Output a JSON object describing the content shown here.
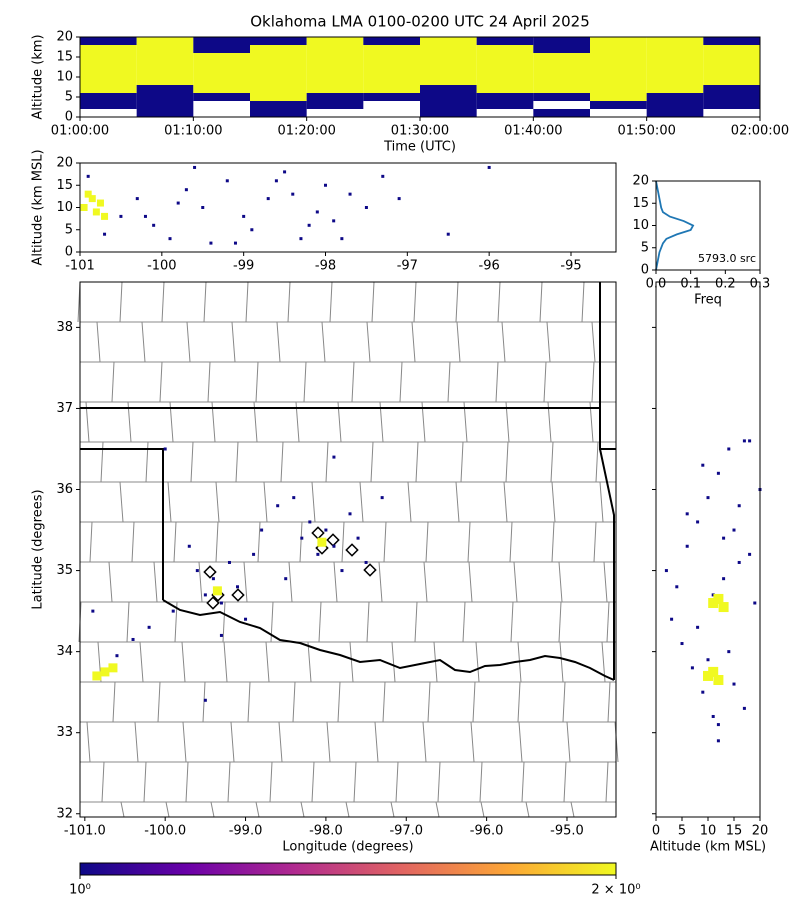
{
  "chart_data": [
    {
      "type": "heatmap",
      "title": "Oklahoma LMA 0100-0200 UTC 24 April 2025",
      "x_label": "Time (UTC)",
      "y_label": "Altitude (km)",
      "xlim": [
        "01:00:00",
        "02:00:00"
      ],
      "xticks": [
        "01:00:00",
        "01:10:00",
        "01:20:00",
        "01:30:00",
        "01:40:00",
        "01:50:00",
        "02:00:00"
      ],
      "ylim": [
        0,
        20
      ],
      "yticks": [
        0,
        5,
        10,
        15,
        20
      ],
      "xbins": [
        "01:00:00",
        "01:05:00",
        "01:10:00",
        "01:15:00",
        "01:20:00",
        "01:25:00",
        "01:30:00",
        "01:35:00",
        "01:40:00",
        "01:45:00",
        "01:50:00",
        "01:55:00",
        "02:00:00"
      ],
      "ybins": [
        0,
        2,
        4,
        6,
        8,
        10,
        12,
        14,
        16,
        18,
        20
      ],
      "values": [
        [
          null,
          1,
          null,
          1,
          null,
          null,
          1,
          null,
          1,
          null,
          1,
          null
        ],
        [
          1,
          1,
          null,
          1,
          1,
          null,
          1,
          1,
          null,
          1,
          1,
          1
        ],
        [
          1,
          1,
          1,
          2,
          1,
          1,
          1,
          1,
          1,
          2,
          1,
          1
        ],
        [
          2,
          1,
          2,
          2,
          2,
          2,
          1,
          2,
          2,
          2,
          2,
          1
        ],
        [
          2,
          2,
          2,
          2,
          2,
          2,
          2,
          2,
          2,
          2,
          2,
          2
        ],
        [
          2,
          2,
          2,
          2,
          2,
          2,
          2,
          2,
          2,
          2,
          2,
          2
        ],
        [
          2,
          2,
          2,
          2,
          2,
          2,
          2,
          2,
          2,
          2,
          2,
          2
        ],
        [
          2,
          2,
          2,
          2,
          2,
          2,
          2,
          2,
          2,
          2,
          2,
          2
        ],
        [
          2,
          2,
          1,
          2,
          2,
          2,
          2,
          2,
          1,
          2,
          2,
          2
        ],
        [
          1,
          2,
          1,
          1,
          2,
          1,
          2,
          1,
          1,
          2,
          2,
          1
        ]
      ]
    },
    {
      "type": "scatter",
      "y_label": "Altitude (km MSL)",
      "xlim": [
        -101,
        -94.45
      ],
      "xticks": [
        -101,
        -100,
        -99,
        -98,
        -97,
        -96,
        -95
      ],
      "ylim": [
        0,
        20
      ],
      "yticks": [
        0,
        5,
        10,
        15,
        20
      ],
      "series": [
        {
          "color": "#0d0887",
          "marker_size": 3,
          "x": [
            -100.9,
            -100.7,
            -100.5,
            -100.3,
            -100.1,
            -99.9,
            -99.7,
            -99.5,
            -99.4,
            -99.2,
            -99.0,
            -98.9,
            -98.7,
            -98.5,
            -98.3,
            -98.1,
            -98.0,
            -97.9,
            -97.7,
            -97.5,
            -97.3,
            -97.1,
            -96.5,
            -96.0,
            -99.8,
            -99.1,
            -98.6,
            -98.2,
            -97.8,
            -99.6,
            -98.4,
            -100.2
          ],
          "values": [
            17,
            4,
            8,
            12,
            6,
            3,
            14,
            10,
            2,
            16,
            8,
            5,
            12,
            18,
            3,
            9,
            15,
            7,
            13,
            10,
            17,
            12,
            4,
            19,
            11,
            2,
            16,
            6,
            3,
            19,
            13,
            8
          ]
        },
        {
          "color": "#f0f921",
          "marker_size": 7,
          "x": [
            -100.95,
            -100.85,
            -100.8,
            -100.75,
            -100.9,
            -100.7
          ],
          "values": [
            10,
            12,
            9,
            11,
            13,
            8
          ]
        }
      ]
    },
    {
      "type": "line",
      "x_label": "Freq",
      "annotation": "5793.0 src",
      "color": "#1f77b4",
      "xlim": [
        0,
        0.3
      ],
      "xticks": [
        {
          "value": 0,
          "label": "0.0"
        },
        {
          "value": 0.1,
          "label": "0.1"
        },
        {
          "value": 0.2,
          "label": "0.2"
        },
        {
          "value": 0.3,
          "label": "0.3"
        }
      ],
      "ylim": [
        0,
        20
      ],
      "yticks": [
        0,
        5,
        10,
        15,
        20
      ],
      "y": [
        0,
        2,
        4,
        6,
        7,
        8,
        9,
        10,
        11,
        12,
        13,
        14,
        16,
        18,
        20
      ],
      "values": [
        0,
        0.005,
        0.01,
        0.02,
        0.03,
        0.06,
        0.1,
        0.107,
        0.08,
        0.04,
        0.02,
        0.015,
        0.01,
        0.005,
        0
      ]
    },
    {
      "type": "scatter",
      "x_label": "Longitude (degrees)",
      "y_label": "Latitude (degrees)",
      "xlim": [
        -101.06,
        -94.39
      ],
      "xticks": [
        {
          "value": -101,
          "label": "-101.0"
        },
        {
          "value": -100,
          "label": "-100.0"
        },
        {
          "value": -99,
          "label": "-99.0"
        },
        {
          "value": -98,
          "label": "-98.0"
        },
        {
          "value": -97,
          "label": "-97.0"
        },
        {
          "value": -96,
          "label": "-96.0"
        },
        {
          "value": -95,
          "label": "-95.0"
        }
      ],
      "ylim": [
        31.96,
        38.56
      ],
      "yticks": [
        32,
        33,
        34,
        35,
        36,
        37,
        38
      ],
      "series": [
        {
          "color": "#0d0887",
          "marker_size": 3,
          "x": [
            -100.6,
            -100.4,
            -100.2,
            -99.9,
            -99.6,
            -99.5,
            -99.4,
            -99.3,
            -99.2,
            -99.1,
            -99.0,
            -98.8,
            -98.5,
            -98.3,
            -98.2,
            -98.1,
            -98.0,
            -97.9,
            -97.8,
            -97.7,
            -97.6,
            -97.5,
            -97.3,
            -98.6,
            -99.7,
            -100.9,
            -99.3,
            -98.9,
            -97.9,
            -98.4,
            -100.0,
            -99.5
          ],
          "values": [
            33.95,
            34.15,
            34.3,
            34.5,
            35.0,
            34.7,
            34.9,
            34.6,
            35.1,
            34.8,
            34.4,
            35.5,
            34.9,
            35.4,
            35.6,
            35.2,
            35.5,
            35.3,
            35.0,
            35.7,
            35.4,
            35.1,
            35.9,
            35.8,
            35.3,
            34.5,
            34.2,
            35.2,
            36.4,
            35.9,
            36.5,
            33.4
          ]
        },
        {
          "color": "#f0f921",
          "marker_size": 9,
          "x": [
            -100.85,
            -100.75,
            -100.65,
            -99.35,
            -98.05
          ],
          "values": [
            33.7,
            33.75,
            33.8,
            34.75,
            35.35
          ]
        }
      ]
    },
    {
      "type": "scatter",
      "x_label": "Altitude (km MSL)",
      "xlim": [
        0,
        20
      ],
      "xticks": [
        0,
        5,
        10,
        15,
        20
      ],
      "ylim": [
        31.96,
        38.56
      ],
      "yticks": [
        32,
        33,
        34,
        35,
        36,
        37,
        38
      ],
      "series": [
        {
          "color": "#0d0887",
          "marker_size": 3,
          "x": [
            2,
            4,
            6,
            8,
            10,
            12,
            14,
            16,
            18,
            20,
            3,
            5,
            7,
            9,
            11,
            13,
            15,
            17,
            19,
            6,
            8,
            10,
            12,
            14,
            16,
            9,
            11,
            13,
            15,
            17,
            12,
            18
          ],
          "values": [
            35.0,
            34.8,
            35.3,
            35.6,
            35.9,
            36.2,
            36.5,
            35.8,
            35.2,
            36.0,
            34.4,
            34.1,
            33.8,
            33.5,
            33.2,
            34.9,
            35.5,
            36.6,
            34.6,
            35.7,
            34.3,
            33.9,
            33.1,
            34.0,
            35.1,
            36.3,
            34.7,
            35.4,
            33.6,
            33.3,
            32.9,
            36.6
          ]
        },
        {
          "color": "#f0f921",
          "marker_size": 10,
          "x": [
            11,
            12,
            13,
            10,
            11,
            12
          ],
          "values": [
            34.6,
            34.65,
            34.55,
            33.7,
            33.75,
            33.65
          ]
        }
      ]
    },
    {
      "type": "colorbar",
      "colormap": [
        "#0d0887",
        "#6a00a8",
        "#b12a90",
        "#e16462",
        "#fca636",
        "#f0f921"
      ],
      "clim": [
        1,
        2
      ],
      "ticks": [
        {
          "value": 1,
          "label": "10⁰"
        },
        {
          "value": 2,
          "label": "2 × 10⁰"
        }
      ]
    }
  ]
}
